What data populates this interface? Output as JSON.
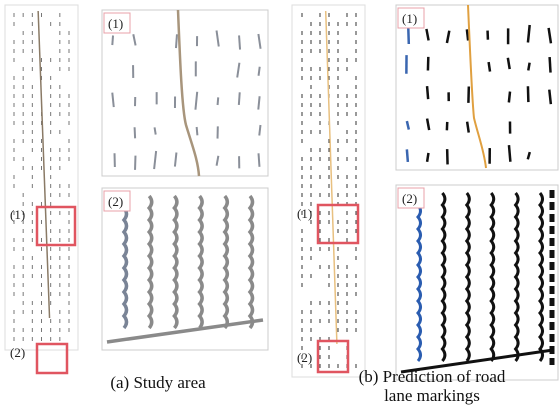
{
  "panels": [
    {
      "caption": [
        "(a) Study area"
      ],
      "overview_labels": [
        "(1)",
        "(2)"
      ],
      "insets": [
        {
          "label": "(1)"
        },
        {
          "label": "(2)"
        }
      ]
    },
    {
      "caption": [
        "(b) Prediction of road",
        "lane markings"
      ],
      "overview_labels": [
        "(1)",
        "(2)"
      ],
      "insets": [
        {
          "label": "(1)"
        },
        {
          "label": "(2)"
        }
      ]
    }
  ]
}
